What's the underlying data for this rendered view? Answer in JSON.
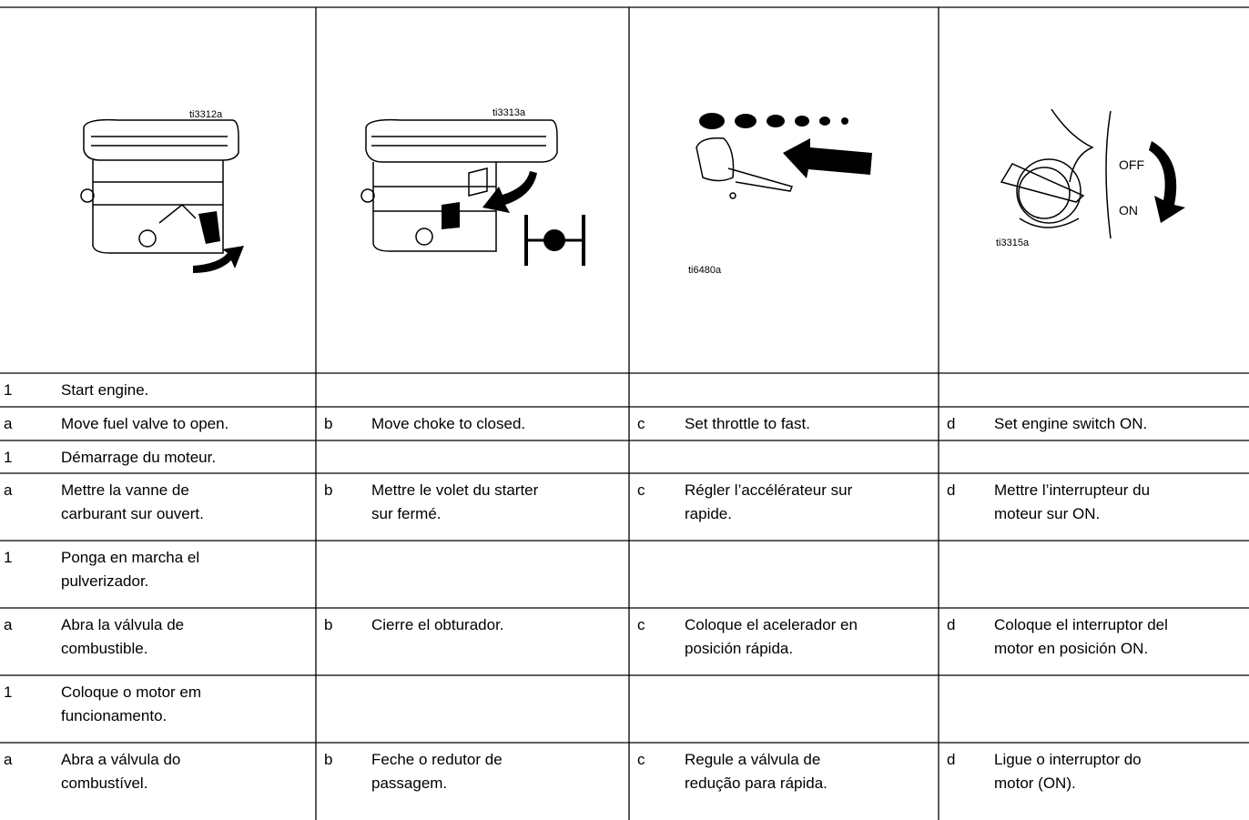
{
  "figures": [
    {
      "caption": "ti3312a"
    },
    {
      "caption": "ti3313a"
    },
    {
      "caption": "ti6480a"
    },
    {
      "caption": "ti3315a"
    },
    {
      "labels": [
        "OFF",
        "ON"
      ]
    }
  ],
  "rows": [
    [
      {
        "letter": "1",
        "lines": [
          "Start engine."
        ]
      },
      null,
      null,
      null
    ],
    [
      {
        "letter": "a",
        "lines": [
          "Move fuel valve to open."
        ]
      },
      {
        "letter": "b",
        "lines": [
          "Move choke to closed."
        ]
      },
      {
        "letter": "c",
        "lines": [
          "Set throttle to fast."
        ]
      },
      {
        "letter": "d",
        "lines": [
          "Set engine switch ON."
        ]
      }
    ],
    [
      {
        "letter": "1",
        "lines": [
          "Démarrage du moteur."
        ]
      },
      null,
      null,
      null
    ],
    [
      {
        "letter": "a",
        "lines": [
          "Mettre la vanne de",
          "carburant sur ouvert."
        ]
      },
      {
        "letter": "b",
        "lines": [
          "Mettre le volet du starter",
          "sur fermé."
        ]
      },
      {
        "letter": "c",
        "lines": [
          "Régler l’accélérateur sur",
          "rapide."
        ]
      },
      {
        "letter": "d",
        "lines": [
          "Mettre l’interrupteur du",
          "moteur sur ON."
        ]
      }
    ],
    [
      {
        "letter": "1",
        "lines": [
          "Ponga en marcha el",
          "pulverizador."
        ]
      },
      null,
      null,
      null
    ],
    [
      {
        "letter": "a",
        "lines": [
          "Abra la válvula de",
          "combustible."
        ]
      },
      {
        "letter": "b",
        "lines": [
          "Cierre el obturador."
        ]
      },
      {
        "letter": "c",
        "lines": [
          "Coloque el acelerador en",
          "posición rápida."
        ]
      },
      {
        "letter": "d",
        "lines": [
          "Coloque el interruptor del",
          "motor en posición ON."
        ]
      }
    ],
    [
      {
        "letter": "1",
        "lines": [
          "Coloque o motor em",
          "funcionamento."
        ]
      },
      null,
      null,
      null
    ],
    [
      {
        "letter": "a",
        "lines": [
          "Abra a válvula do",
          "combustível."
        ]
      },
      {
        "letter": "b",
        "lines": [
          "Feche o redutor de",
          "passagem."
        ]
      },
      {
        "letter": "c",
        "lines": [
          "Regule a válvula de",
          "redução para rápida."
        ]
      },
      {
        "letter": "d",
        "lines": [
          "Ligue o interruptor do",
          "motor (ON)."
        ]
      }
    ]
  ]
}
